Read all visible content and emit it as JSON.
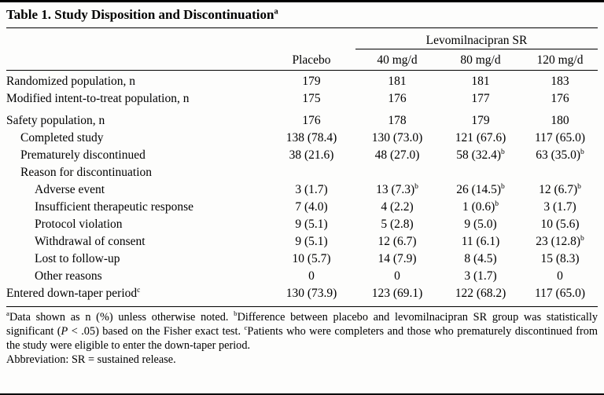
{
  "table": {
    "title": "Table 1. Study Disposition and Discontinuation^a",
    "group_header": "Levomilnacipran SR",
    "columns": [
      "Placebo",
      "40 mg/d",
      "80 mg/d",
      "120 mg/d"
    ],
    "rows": [
      {
        "label": "Randomized population, n",
        "indent": 0,
        "values": [
          "179",
          "181",
          "181",
          "183"
        ]
      },
      {
        "label": "Modified intent-to-treat population, n",
        "indent": 0,
        "values": [
          "175",
          "176",
          "177",
          "176"
        ]
      },
      {
        "label": "Safety population, n",
        "indent": 0,
        "gap_before": true,
        "values": [
          "176",
          "178",
          "179",
          "180"
        ]
      },
      {
        "label": "Completed study",
        "indent": 1,
        "values": [
          "138 (78.4)",
          "130 (73.0)",
          "121 (67.6)",
          "117 (65.0)"
        ]
      },
      {
        "label": "Prematurely discontinued",
        "indent": 1,
        "values": [
          "38 (21.6)",
          "48 (27.0)",
          "58 (32.4)^b",
          "63 (35.0)^b"
        ]
      },
      {
        "label": "Reason for discontinuation",
        "indent": 1,
        "values": [
          "",
          "",
          "",
          ""
        ]
      },
      {
        "label": "Adverse event",
        "indent": 2,
        "values": [
          "3 (1.7)",
          "13 (7.3)^b",
          "26 (14.5)^b",
          "12 (6.7)^b"
        ]
      },
      {
        "label": "Insufficient therapeutic response",
        "indent": 2,
        "values": [
          "7 (4.0)",
          "4 (2.2)",
          "1 (0.6)^b",
          "3 (1.7)"
        ]
      },
      {
        "label": "Protocol violation",
        "indent": 2,
        "values": [
          "9 (5.1)",
          "5 (2.8)",
          "9 (5.0)",
          "10 (5.6)"
        ]
      },
      {
        "label": "Withdrawal of consent",
        "indent": 2,
        "values": [
          "9 (5.1)",
          "12 (6.7)",
          "11 (6.1)",
          "23 (12.8)^b"
        ]
      },
      {
        "label": "Lost to follow-up",
        "indent": 2,
        "values": [
          "10 (5.7)",
          "14 (7.9)",
          "8 (4.5)",
          "15 (8.3)"
        ]
      },
      {
        "label": "Other reasons",
        "indent": 2,
        "values": [
          "0",
          "0",
          "3 (1.7)",
          "0"
        ]
      },
      {
        "label": "Entered down-taper period^c",
        "indent": 0,
        "values": [
          "130 (73.9)",
          "123 (69.1)",
          "122 (68.2)",
          "117 (65.0)"
        ]
      }
    ],
    "footnotes": "^aData shown as n (%) unless otherwise noted.  ^bDifference between placebo and levomilnacipran SR group was statistically significant (*P* < .05) based on the Fisher exact test.  ^cPatients who were completers and those who prematurely discontinued from the study were eligible to enter the down-taper period.",
    "abbreviation": "Abbreviation: SR = sustained release."
  }
}
